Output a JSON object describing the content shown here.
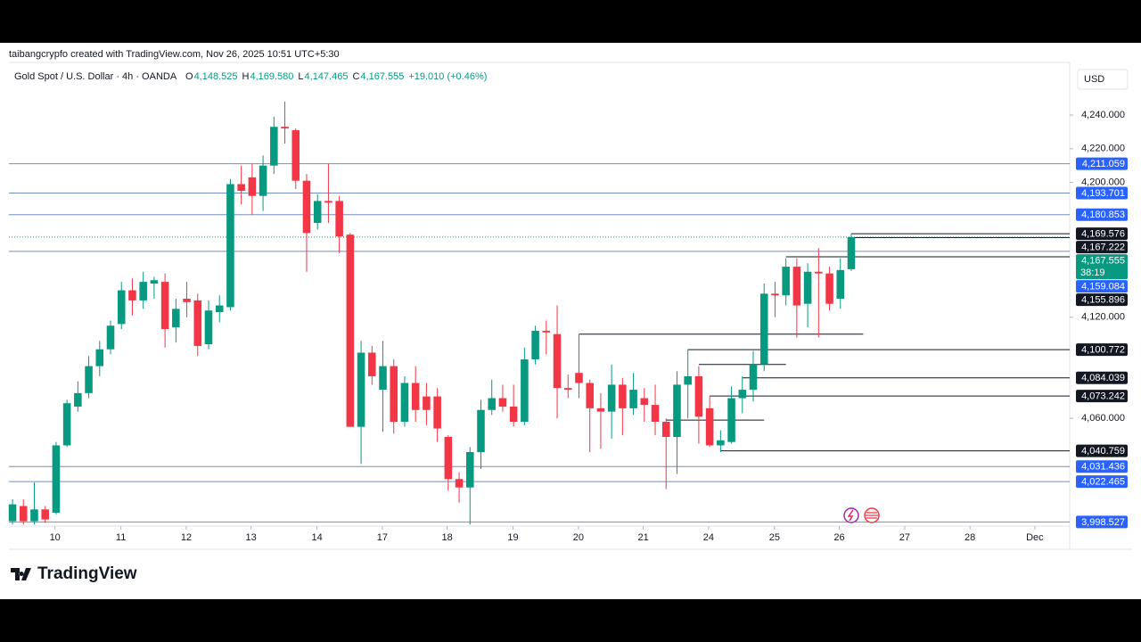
{
  "header": {
    "attribution": "taibangcrypfo created with TradingView.com, Nov 26, 2025 10:51 UTC+5:30",
    "symbol": "Gold Spot / U.S. Dollar · 4h · OANDA",
    "ohlc": [
      {
        "key": "O",
        "value": "4,148.525"
      },
      {
        "key": "H",
        "value": "4,169.580"
      },
      {
        "key": "L",
        "value": "4,147.465"
      },
      {
        "key": "C",
        "value": "4,167.555"
      }
    ],
    "change": "+19.010 (+0.46%)"
  },
  "chart_data": {
    "type": "candlestick",
    "open": [
      3999,
      4008,
      3999,
      4006,
      4004,
      4044,
      4067,
      4075,
      4091,
      4101,
      4116,
      4136,
      4130,
      4140,
      4141,
      4114,
      4131,
      4130,
      4104,
      4123,
      4126,
      4199,
      4203,
      4192,
      4210,
      4233,
      4231,
      4201,
      4176,
      4189,
      4189,
      4169,
      4055,
      4099,
      4077,
      4091,
      4058,
      4081,
      4073,
      4073,
      4049,
      4024,
      4019,
      4040,
      4065,
      4072,
      4067,
      4058,
      4095,
      4112,
      4110,
      4078,
      4087,
      4081,
      4066,
      4064,
      4080,
      4066,
      4072,
      4068,
      4058,
      4049,
      4080,
      4085,
      4066,
      4044,
      4046,
      4072,
      4077,
      4092,
      4134,
      4133,
      4150,
      4128,
      4147,
      4146,
      4131,
      4148.525
    ],
    "high": [
      4012,
      4012,
      4022,
      4008,
      4046,
      4071,
      4082,
      4097,
      4106,
      4118,
      4141,
      4143,
      4147,
      4144,
      4146,
      4131,
      4141,
      4134,
      4130,
      4133,
      4202,
      4210,
      4211,
      4216,
      4239,
      4248,
      4232,
      4205,
      4193,
      4211,
      4192,
      4170,
      4106,
      4103,
      4106,
      4095,
      4085,
      4091,
      4081,
      4078,
      4050,
      4028,
      4043,
      4071,
      4083,
      4080,
      4080,
      4102,
      4115,
      4118,
      4127,
      4086,
      4110,
      4083,
      4075,
      4092,
      4084,
      4087,
      4078,
      4080,
      4060,
      4088,
      4101,
      4091,
      4073,
      4053,
      4079,
      4085,
      4100,
      4140,
      4141,
      4155,
      4155,
      4152,
      4161,
      4150,
      4155,
      4169.58
    ],
    "low": [
      3997,
      3997,
      3997,
      3998,
      4003,
      4043,
      4064,
      4072,
      4085,
      4098,
      4113,
      4121,
      4125,
      4131,
      4102,
      4105,
      4120,
      4097,
      4101,
      4117,
      4124,
      4187,
      4181,
      4183,
      4205,
      4223,
      4196,
      4147,
      4172,
      4176,
      4158,
      4055,
      4033,
      4080,
      4052,
      4051,
      4055,
      4058,
      4056,
      4046,
      4017,
      4010,
      3997,
      4030,
      4062,
      4064,
      4055,
      4056,
      4092,
      4098,
      4060,
      4072,
      4072,
      4040,
      4042,
      4048,
      4050,
      4062,
      4058,
      4050,
      4018,
      4027,
      4060,
      4045,
      4043,
      4040,
      4045,
      4063,
      4070,
      4088,
      4120,
      4127,
      4108,
      4114,
      4108,
      4124,
      4125,
      4147.465
    ],
    "close": [
      4009,
      3999,
      4006,
      4000,
      4044,
      4069,
      4075,
      4091,
      4101,
      4115,
      4136,
      4130,
      4141,
      4142,
      4113,
      4125,
      4129,
      4103,
      4124,
      4127,
      4199,
      4195,
      4192,
      4210,
      4233,
      4232,
      4201,
      4170,
      4189,
      4188,
      4168,
      4055,
      4099,
      4085,
      4091,
      4058,
      4081,
      4065,
      4065,
      4054,
      4024,
      4019,
      4040,
      4065,
      4072,
      4067,
      4058,
      4095,
      4112,
      4111,
      4078,
      4077,
      4081,
      4066,
      4064,
      4080,
      4066,
      4077,
      4068,
      4058,
      4049,
      4080,
      4085,
      4061,
      4044,
      4047,
      4072,
      4077,
      4092,
      4134,
      4133,
      4150,
      4127,
      4147,
      4146,
      4128,
      4148,
      4167.555
    ],
    "colors": {
      "up": "#089981",
      "down": "#f23645"
    },
    "xlim": [
      -0.33,
      97.05
    ],
    "xticks": [
      {
        "value": 3.9,
        "label": "10"
      },
      {
        "value": 9.95,
        "label": "11"
      },
      {
        "value": 15.95,
        "label": "12"
      },
      {
        "value": 21.9,
        "label": "13"
      },
      {
        "value": 27.95,
        "label": "14"
      },
      {
        "value": 33.95,
        "label": "17"
      },
      {
        "value": 39.9,
        "label": "18"
      },
      {
        "value": 45.95,
        "label": "19"
      },
      {
        "value": 51.95,
        "label": "20"
      },
      {
        "value": 57.9,
        "label": "21"
      },
      {
        "value": 63.9,
        "label": "24"
      },
      {
        "value": 69.95,
        "label": "25"
      },
      {
        "value": 75.9,
        "label": "26"
      },
      {
        "value": 81.9,
        "label": "27"
      },
      {
        "value": 87.9,
        "label": "28"
      },
      {
        "value": 93.85,
        "label": "Dec"
      }
    ],
    "ylim": [
      3996.1,
      4271.2
    ],
    "yticks": [
      {
        "value": 4240,
        "label": "4,240.000"
      },
      {
        "value": 4220,
        "label": "4,220.000"
      },
      {
        "value": 4200,
        "label": "4,200.000"
      },
      {
        "value": 4120,
        "label": "4,120.000"
      },
      {
        "value": 4060,
        "label": "4,060.000"
      }
    ],
    "currency": "USD",
    "levels": [
      {
        "value": 4211.059,
        "label": "4,211.059",
        "color": "#2962ff",
        "from": null
      },
      {
        "value": 4193.701,
        "label": "4,193.701",
        "color": "#2962ff",
        "from": null
      },
      {
        "value": 4180.853,
        "label": "4,180.853",
        "color": "#2962ff",
        "from": null
      },
      {
        "value": 4169.576,
        "label": "4,169.576",
        "color": "#131722",
        "from": 77
      },
      {
        "value": 4167.222,
        "label": "4,167.222",
        "color": "#131722",
        "from": 77
      },
      {
        "value": 4159.084,
        "label": "4,159.084",
        "color": "#2962ff",
        "from": null
      },
      {
        "value": 4155.896,
        "label": "4,155.896",
        "color": "#131722",
        "from": 71
      },
      {
        "value": 4100.772,
        "label": "4,100.772",
        "color": "#131722",
        "from": 62
      },
      {
        "value": 4084.039,
        "label": "4,084.039",
        "color": "#131722",
        "from": 67
      },
      {
        "value": 4073.242,
        "label": "4,073.242",
        "color": "#131722",
        "from": 64
      },
      {
        "value": 4040.759,
        "label": "4,040.759",
        "color": "#131722",
        "from": 65
      },
      {
        "value": 4031.436,
        "label": "4,031.436",
        "color": "#2962ff",
        "from": null
      },
      {
        "value": 4022.465,
        "label": "4,022.465",
        "color": "#2962ff",
        "from": null
      },
      {
        "value": 3998.527,
        "label": "3,998.527",
        "color": "#2962ff",
        "from": null
      }
    ],
    "segments": [
      {
        "value": 4110,
        "from": 52,
        "to": 78.1
      },
      {
        "value": 4092,
        "from": 63,
        "to": 71
      },
      {
        "value": 4059,
        "from": 60,
        "to": 69
      }
    ],
    "last_price": {
      "value": 4167.555,
      "label": "4,167.555",
      "countdown": "38:19"
    }
  },
  "footer": {
    "logo": "TradingView"
  }
}
